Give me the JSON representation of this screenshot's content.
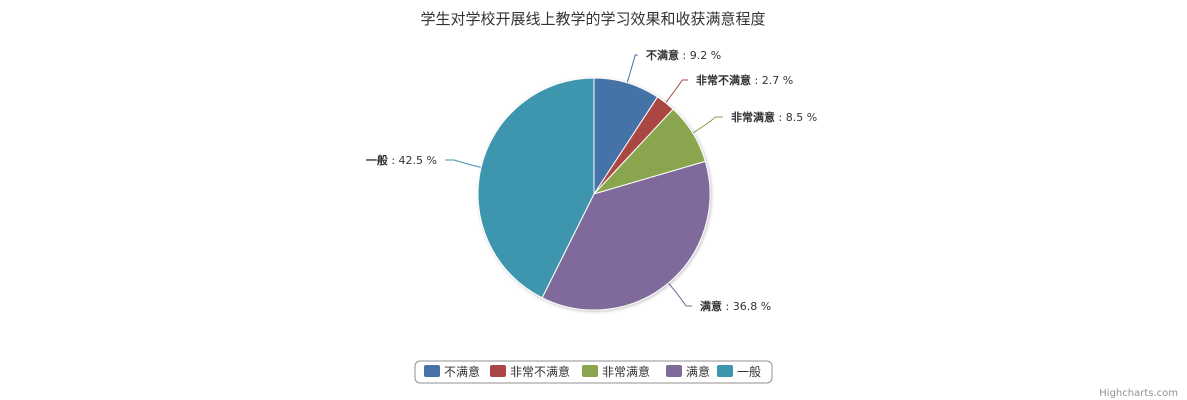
{
  "chart_data": {
    "type": "pie",
    "title": "学生对学校开展线上教学的学习效果和收获满意程度",
    "label_separator": " : ",
    "value_suffix": " %",
    "slices": [
      {
        "name": "不满意",
        "value": 9.2,
        "color": "#4572A7"
      },
      {
        "name": "非常不满意",
        "value": 2.7,
        "color": "#AA4643"
      },
      {
        "name": "非常满意",
        "value": 8.5,
        "color": "#89A54E"
      },
      {
        "name": "满意",
        "value": 36.8,
        "color": "#80699B"
      },
      {
        "name": "一般",
        "value": 42.5,
        "color": "#3D96AE"
      }
    ],
    "legend_position": "bottom-center"
  },
  "credits": "Highcharts.com"
}
